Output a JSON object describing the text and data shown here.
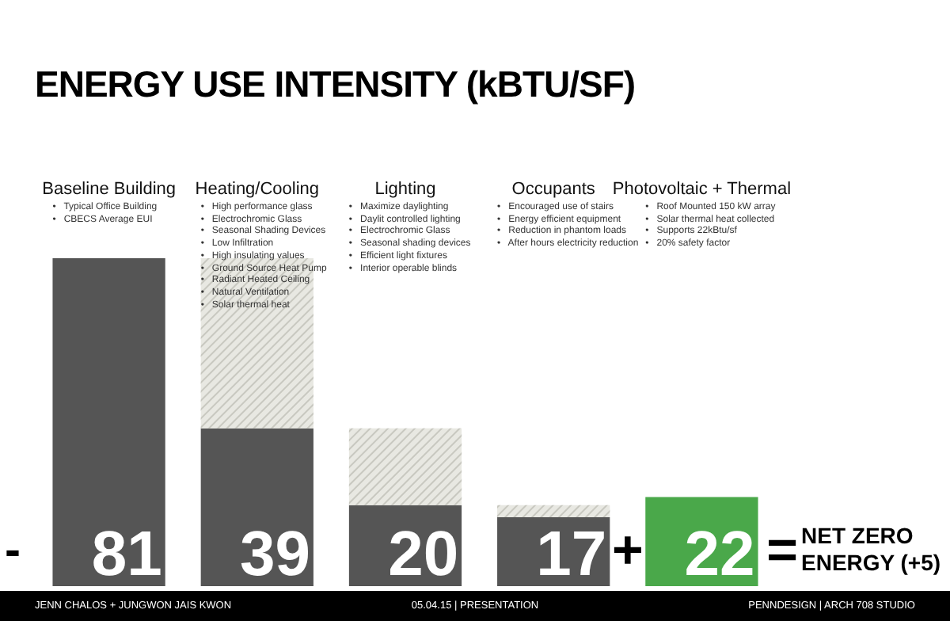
{
  "chart_data": {
    "type": "bar",
    "title": "ENERGY USE INTENSITY (kBTU/SF)",
    "categories": [
      "Baseline Building",
      "Heating/Cooling",
      "Lighting",
      "Occupants",
      "Photovoltaic + Thermal"
    ],
    "stacked": true,
    "series": [
      {
        "colors": [
          "#555555",
          "#555555",
          "#555555",
          "#555555",
          "#4aa84a"
        ],
        "values": [
          81,
          39,
          20,
          17,
          22
        ],
        "value_labels": [
          "81",
          "39",
          "20",
          "17",
          "22"
        ]
      },
      {
        "color": "#e8e8e2",
        "values": [
          null,
          42,
          19,
          3,
          null
        ]
      }
    ],
    "annotations": [
      "• Typical Office Building\n• CBECS Average EUI",
      "• High performance glass\n• Electrochromic Glass\n• Seasonal Shading Devices\n• Low Infiltration\n• High insulating values\n• Ground Source Heat Pump\n• Radiant Heated Ceiling\n• Natural Ventilation\n• Solar thermal heat",
      "• Maximize daylighting\n• Daylit controlled lighting\n• Electrochromic Glass\n• Seasonal shading devices\n• Efficient light fixtures\n• Interior operable blinds",
      "• Encouraged use of stairs\n• Energy efficient equipment\n• Reduction in phantom loads\n• After hours electricity reduction",
      "• Roof Mounted 150 kW array\n• Solar thermal heat collected\n• Supports 22kBtu/sf\n• 20% safety factor",
      "-",
      "+",
      "=",
      "NET ZERO\nENERGY (+5)",
      "JENN CHALOS + JUNGWON JAIS KWON",
      "05.04.15 | PRESENTATION",
      "PENNDESIGN | ARCH 708 STUDIO"
    ]
  }
}
